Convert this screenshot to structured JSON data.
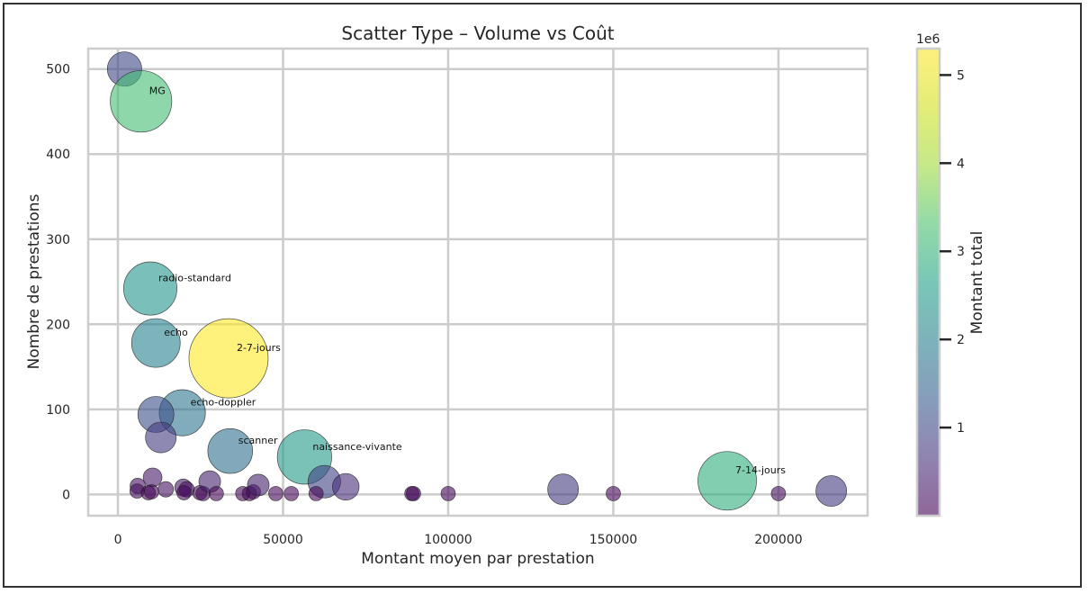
{
  "chart_data": {
    "type": "scatter",
    "title": "Scatter Type – Volume vs Coût",
    "xlabel": "Montant moyen par prestation",
    "ylabel": "Nombre de prestations",
    "xlim": [
      -9000,
      227000
    ],
    "ylim": [
      -25,
      524
    ],
    "x_ticks": [
      0,
      50000,
      100000,
      150000,
      200000
    ],
    "y_ticks": [
      0,
      100,
      200,
      300,
      400,
      500
    ],
    "grid": true,
    "colorbar": {
      "label": "Montant total",
      "multiplier_label": "1e6",
      "range": [
        0,
        5.3
      ],
      "ticks": [
        1,
        2,
        3,
        4,
        5
      ],
      "colormap": "viridis"
    },
    "points": [
      {
        "x": 2000,
        "y": 500,
        "total": 1.0,
        "label": ""
      },
      {
        "x": 7000,
        "y": 462,
        "total": 3.2,
        "label": "MG"
      },
      {
        "x": 9800,
        "y": 242,
        "total": 2.4,
        "label": "radio-standard"
      },
      {
        "x": 11500,
        "y": 178,
        "total": 2.0,
        "label": "echo"
      },
      {
        "x": 33500,
        "y": 160,
        "total": 5.3,
        "label": "2-7-jours"
      },
      {
        "x": 19500,
        "y": 96,
        "total": 1.8,
        "label": "echo-doppler"
      },
      {
        "x": 11500,
        "y": 94,
        "total": 1.1,
        "label": ""
      },
      {
        "x": 13000,
        "y": 67,
        "total": 0.8,
        "label": ""
      },
      {
        "x": 34000,
        "y": 51,
        "total": 1.7,
        "label": "scanner"
      },
      {
        "x": 56500,
        "y": 44,
        "total": 2.5,
        "label": "naissance-vivante"
      },
      {
        "x": 62500,
        "y": 15,
        "total": 0.9,
        "label": ""
      },
      {
        "x": 69000,
        "y": 9,
        "total": 0.6,
        "label": ""
      },
      {
        "x": 184500,
        "y": 16,
        "total": 2.9,
        "label": "7-14-jours"
      },
      {
        "x": 134800,
        "y": 6,
        "total": 0.8,
        "label": ""
      },
      {
        "x": 216000,
        "y": 4,
        "total": 0.8,
        "label": ""
      },
      {
        "x": 10500,
        "y": 20,
        "total": 0.3,
        "label": ""
      },
      {
        "x": 6000,
        "y": 10,
        "total": 0.2,
        "label": ""
      },
      {
        "x": 5800,
        "y": 4,
        "total": 0.15,
        "label": ""
      },
      {
        "x": 9200,
        "y": 2,
        "total": 0.1,
        "label": ""
      },
      {
        "x": 10200,
        "y": 3,
        "total": 0.1,
        "label": ""
      },
      {
        "x": 14500,
        "y": 6,
        "total": 0.2,
        "label": ""
      },
      {
        "x": 19800,
        "y": 8,
        "total": 0.25,
        "label": ""
      },
      {
        "x": 20800,
        "y": 6,
        "total": 0.2,
        "label": ""
      },
      {
        "x": 20000,
        "y": 2,
        "total": 0.1,
        "label": ""
      },
      {
        "x": 24800,
        "y": 2,
        "total": 0.1,
        "label": ""
      },
      {
        "x": 25800,
        "y": 1,
        "total": 0.08,
        "label": ""
      },
      {
        "x": 27800,
        "y": 15,
        "total": 0.4,
        "label": ""
      },
      {
        "x": 29800,
        "y": 1,
        "total": 0.08,
        "label": ""
      },
      {
        "x": 37800,
        "y": 1,
        "total": 0.08,
        "label": ""
      },
      {
        "x": 39800,
        "y": 1,
        "total": 0.08,
        "label": ""
      },
      {
        "x": 41000,
        "y": 3,
        "total": 0.1,
        "label": ""
      },
      {
        "x": 42500,
        "y": 11,
        "total": 0.4,
        "label": ""
      },
      {
        "x": 47800,
        "y": 1,
        "total": 0.08,
        "label": ""
      },
      {
        "x": 52500,
        "y": 1,
        "total": 0.08,
        "label": ""
      },
      {
        "x": 60000,
        "y": 1,
        "total": 0.08,
        "label": ""
      },
      {
        "x": 89000,
        "y": 1,
        "total": 0.08,
        "label": ""
      },
      {
        "x": 89500,
        "y": 1,
        "total": 0.08,
        "label": ""
      },
      {
        "x": 100000,
        "y": 1,
        "total": 0.08,
        "label": ""
      },
      {
        "x": 150000,
        "y": 1,
        "total": 0.1,
        "label": ""
      },
      {
        "x": 200000,
        "y": 1,
        "total": 0.15,
        "label": ""
      }
    ]
  }
}
